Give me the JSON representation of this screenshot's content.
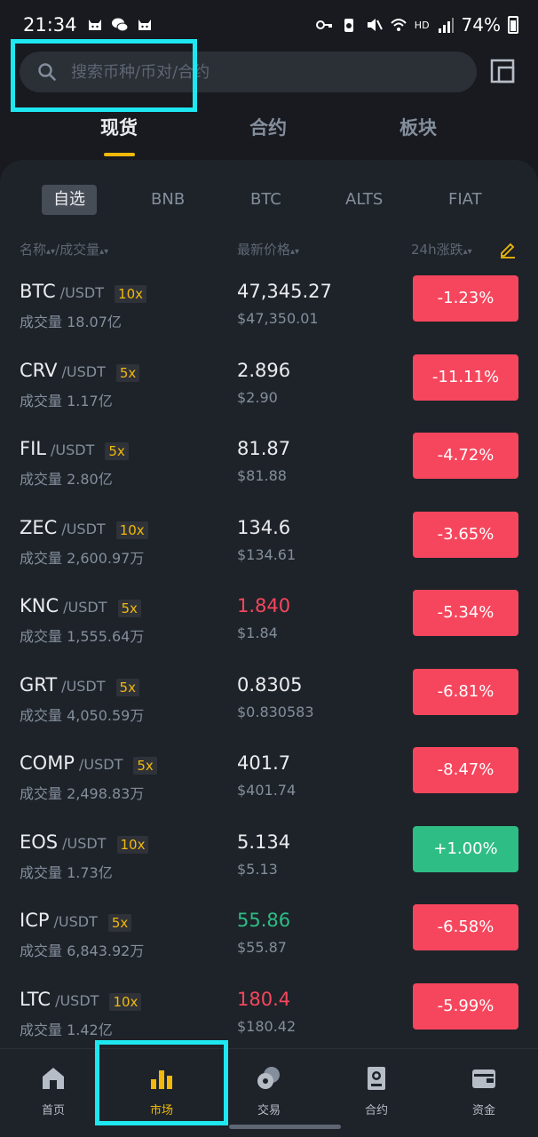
{
  "status_bar": {
    "time": "21:34",
    "network": "HD",
    "battery": "74%"
  },
  "search": {
    "placeholder": "搜索币种/币对/合约"
  },
  "top_tabs": [
    {
      "label": "现货",
      "active": true
    },
    {
      "label": "合约",
      "active": false
    },
    {
      "label": "板块",
      "active": false
    }
  ],
  "sub_tabs": [
    {
      "label": "自选",
      "active": true
    },
    {
      "label": "BNB"
    },
    {
      "label": "BTC"
    },
    {
      "label": "ALTS"
    },
    {
      "label": "FIAT"
    }
  ],
  "columns": {
    "name": "名称",
    "volume": "成交量",
    "sep": "/",
    "price": "最新价格",
    "change": "24h涨跌"
  },
  "rows": [
    {
      "base": "BTC",
      "quote": "/USDT",
      "leverage": "10x",
      "volume": "成交量 18.07亿",
      "price": "47,345.27",
      "fiat": "$47,350.01",
      "change": "-1.23%",
      "trend": "down",
      "price_color": "neutral"
    },
    {
      "base": "CRV",
      "quote": "/USDT",
      "leverage": "5x",
      "volume": "成交量 1.17亿",
      "price": "2.896",
      "fiat": "$2.90",
      "change": "-11.11%",
      "trend": "down",
      "price_color": "neutral"
    },
    {
      "base": "FIL",
      "quote": "/USDT",
      "leverage": "5x",
      "volume": "成交量 2.80亿",
      "price": "81.87",
      "fiat": "$81.88",
      "change": "-4.72%",
      "trend": "down",
      "price_color": "neutral"
    },
    {
      "base": "ZEC",
      "quote": "/USDT",
      "leverage": "10x",
      "volume": "成交量 2,600.97万",
      "price": "134.6",
      "fiat": "$134.61",
      "change": "-3.65%",
      "trend": "down",
      "price_color": "neutral"
    },
    {
      "base": "KNC",
      "quote": "/USDT",
      "leverage": "5x",
      "volume": "成交量 1,555.64万",
      "price": "1.840",
      "fiat": "$1.84",
      "change": "-5.34%",
      "trend": "down",
      "price_color": "down"
    },
    {
      "base": "GRT",
      "quote": "/USDT",
      "leverage": "5x",
      "volume": "成交量 4,050.59万",
      "price": "0.8305",
      "fiat": "$0.830583",
      "change": "-6.81%",
      "trend": "down",
      "price_color": "neutral"
    },
    {
      "base": "COMP",
      "quote": "/USDT",
      "leverage": "5x",
      "volume": "成交量 2,498.83万",
      "price": "401.7",
      "fiat": "$401.74",
      "change": "-8.47%",
      "trend": "down",
      "price_color": "neutral"
    },
    {
      "base": "EOS",
      "quote": "/USDT",
      "leverage": "10x",
      "volume": "成交量 1.73亿",
      "price": "5.134",
      "fiat": "$5.13",
      "change": "+1.00%",
      "trend": "up",
      "price_color": "neutral"
    },
    {
      "base": "ICP",
      "quote": "/USDT",
      "leverage": "5x",
      "volume": "成交量 6,843.92万",
      "price": "55.86",
      "fiat": "$55.87",
      "change": "-6.58%",
      "trend": "down",
      "price_color": "up"
    },
    {
      "base": "LTC",
      "quote": "/USDT",
      "leverage": "10x",
      "volume": "成交量 1.42亿",
      "price": "180.4",
      "fiat": "$180.42",
      "change": "-5.99%",
      "trend": "down",
      "price_color": "down"
    }
  ],
  "bottom_nav": [
    {
      "label": "首页",
      "icon": "home-icon",
      "active": false
    },
    {
      "label": "市场",
      "icon": "market-chart-icon",
      "active": true
    },
    {
      "label": "交易",
      "icon": "trade-icon",
      "active": false
    },
    {
      "label": "合约",
      "icon": "futures-icon",
      "active": false
    },
    {
      "label": "资金",
      "icon": "wallet-icon",
      "active": false
    }
  ],
  "colors": {
    "accent": "#f0b90b",
    "down": "#f6465d",
    "up": "#2ebd85",
    "highlight": "#1ee7f0"
  }
}
